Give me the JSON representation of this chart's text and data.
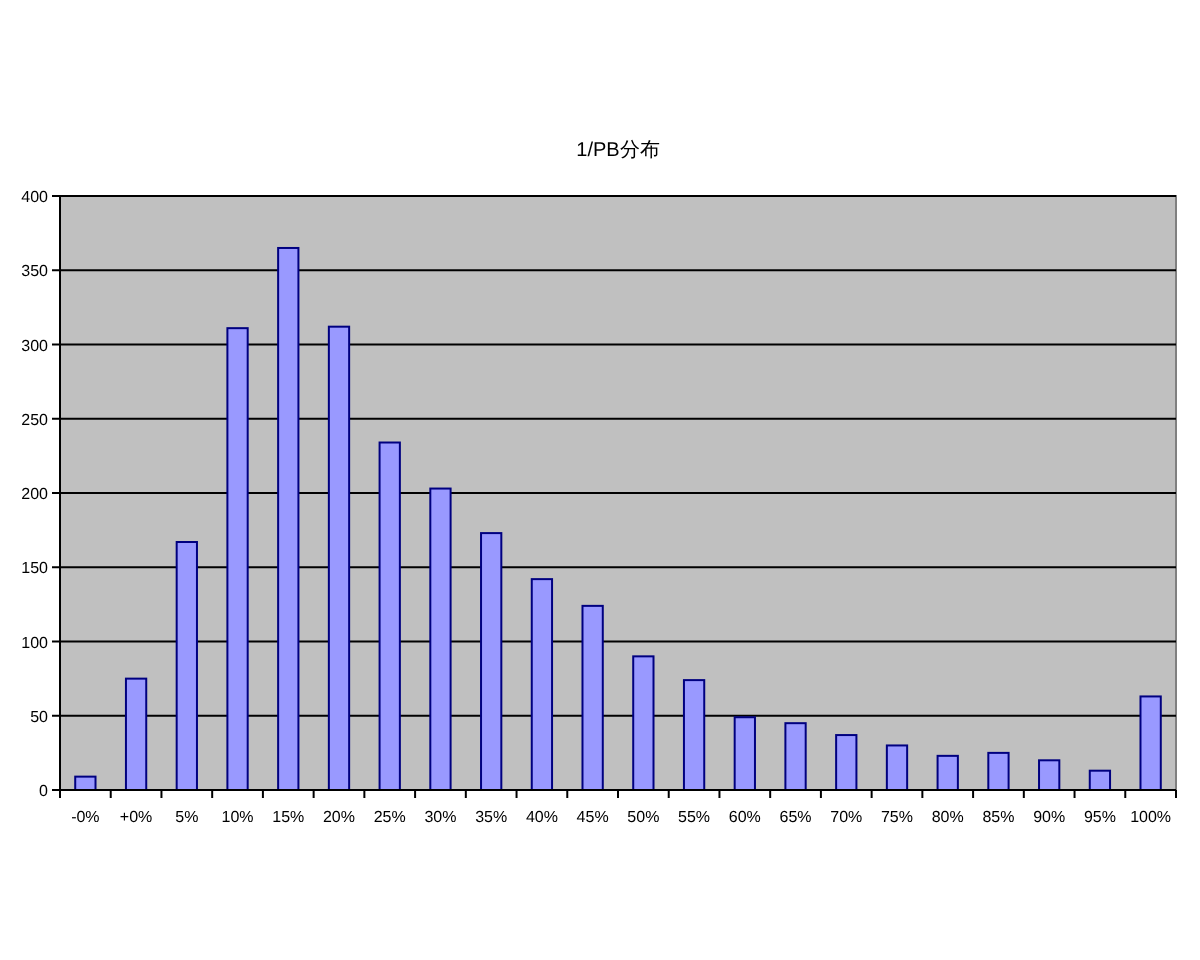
{
  "chart_data": {
    "type": "bar",
    "title": "1/PB分布",
    "categories": [
      "-0%",
      "+0%",
      "5%",
      "10%",
      "15%",
      "20%",
      "25%",
      "30%",
      "35%",
      "40%",
      "45%",
      "50%",
      "55%",
      "60%",
      "65%",
      "70%",
      "75%",
      "80%",
      "85%",
      "90%",
      "95%",
      "100%"
    ],
    "values": [
      9,
      75,
      167,
      311,
      365,
      312,
      234,
      203,
      173,
      142,
      124,
      90,
      74,
      49,
      45,
      37,
      30,
      23,
      25,
      20,
      13,
      63
    ],
    "color": "#9999ff",
    "ylim": [
      0,
      400
    ],
    "yticks": [
      0,
      50,
      100,
      150,
      200,
      250,
      300,
      350,
      400
    ],
    "grid": "y"
  }
}
